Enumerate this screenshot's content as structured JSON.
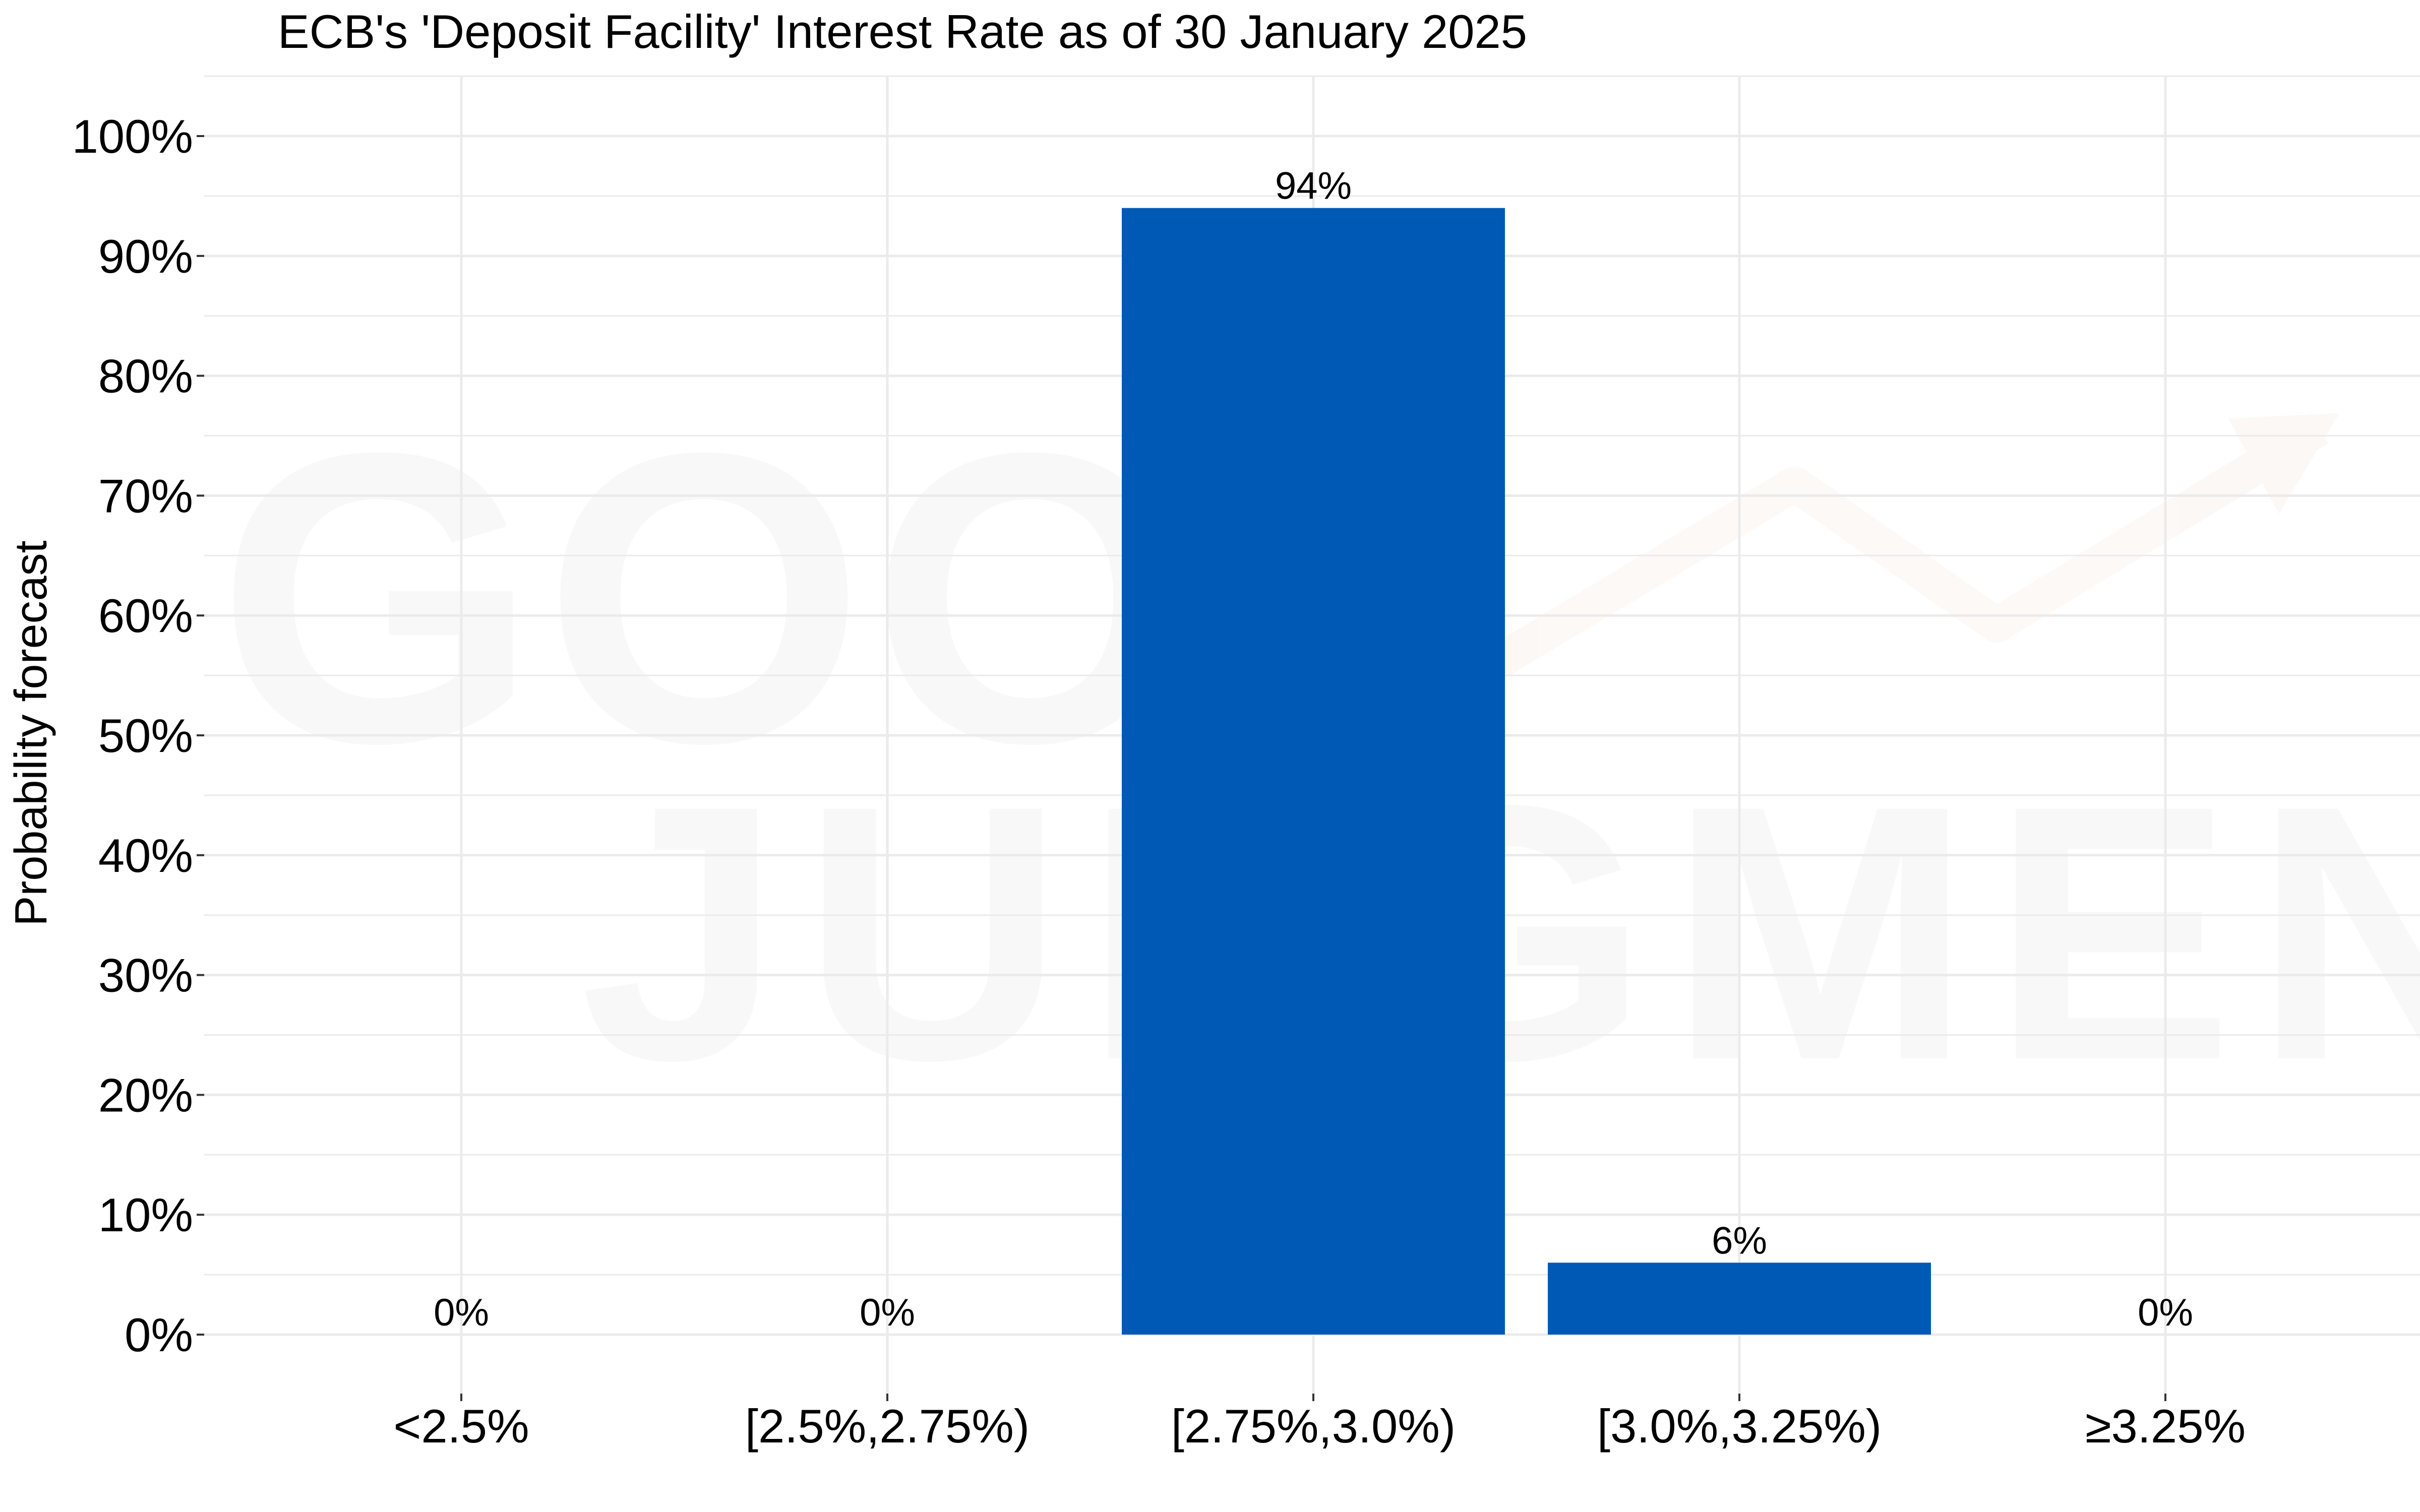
{
  "watermark": {
    "line1": "GOOD",
    "line2": "JUDGMENT",
    "text_color": "#888888",
    "arrow_color": "#d9826b"
  },
  "chart_data": {
    "type": "bar",
    "title": "ECB's 'Deposit Facility' Interest Rate as of 30 January 2025",
    "xlabel": "",
    "ylabel": "Probability forecast",
    "categories": [
      "<2.5%",
      "[2.5%,2.75%)",
      "[2.75%,3.0%)",
      "[3.0%,3.25%)",
      "≥3.25%"
    ],
    "values": [
      0,
      0,
      94,
      6,
      0
    ],
    "data_labels": [
      "0%",
      "0%",
      "94%",
      "6%",
      "0%"
    ],
    "ylim": [
      0,
      100
    ],
    "yticks": [
      0,
      10,
      20,
      30,
      40,
      50,
      60,
      70,
      80,
      90,
      100
    ],
    "ytick_labels": [
      "0%",
      "10%",
      "20%",
      "30%",
      "40%",
      "50%",
      "60%",
      "70%",
      "80%",
      "90%",
      "100%"
    ],
    "grid": true,
    "legend": "none",
    "bar_color": "#005AB5",
    "grid_color": "#EBEBEB"
  }
}
